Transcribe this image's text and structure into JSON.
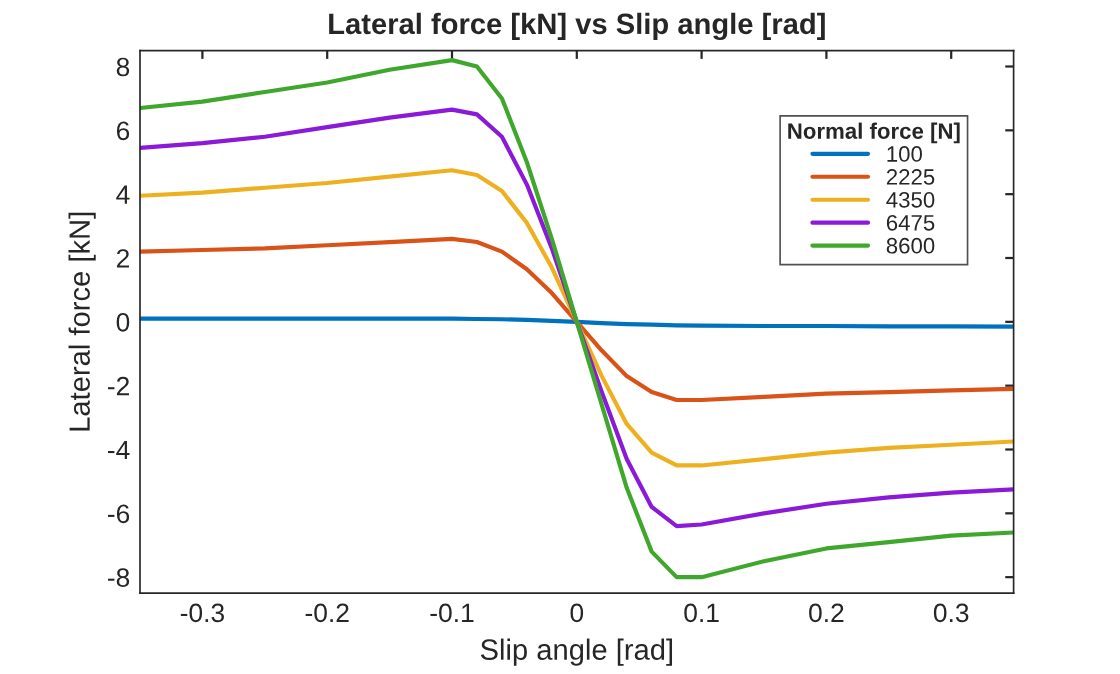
{
  "chart_data": {
    "type": "line",
    "title": "Lateral force [kN] vs Slip angle [rad]",
    "xlabel": "Slip angle [rad]",
    "ylabel": "Lateral force [kN]",
    "legend_title": "Normal force [N]",
    "legend": "top right",
    "grid": false,
    "marker": "none",
    "line_style": "solid",
    "x": [
      -0.35,
      -0.3,
      -0.25,
      -0.2,
      -0.15,
      -0.1,
      -0.08,
      -0.06,
      -0.04,
      -0.02,
      0,
      0.02,
      0.04,
      0.06,
      0.08,
      0.1,
      0.15,
      0.2,
      0.25,
      0.3,
      0.35
    ],
    "xlim": [
      -0.35,
      0.35
    ],
    "xticks": [
      -0.3,
      -0.2,
      -0.1,
      0,
      0.1,
      0.2,
      0.3
    ],
    "ylim": [
      -8.5,
      8.5
    ],
    "yticks": [
      -8,
      -6,
      -4,
      -2,
      0,
      2,
      4,
      6,
      8
    ],
    "series": [
      {
        "name": "100",
        "color": "#0072bd",
        "values": [
          0.1,
          0.1,
          0.1,
          0.1,
          0.1,
          0.1,
          0.09,
          0.08,
          0.06,
          0.03,
          0,
          -0.04,
          -0.07,
          -0.09,
          -0.11,
          -0.12,
          -0.13,
          -0.13,
          -0.14,
          -0.14,
          -0.15
        ]
      },
      {
        "name": "2225",
        "color": "#d95319",
        "values": [
          2.2,
          2.25,
          2.3,
          2.4,
          2.5,
          2.6,
          2.5,
          2.2,
          1.65,
          0.9,
          0,
          -0.9,
          -1.7,
          -2.2,
          -2.45,
          -2.45,
          -2.35,
          -2.25,
          -2.2,
          -2.15,
          -2.1
        ]
      },
      {
        "name": "4350",
        "color": "#edb120",
        "values": [
          3.95,
          4.05,
          4.2,
          4.35,
          4.55,
          4.75,
          4.6,
          4.1,
          3.1,
          1.7,
          0,
          -1.7,
          -3.2,
          -4.1,
          -4.5,
          -4.5,
          -4.3,
          -4.1,
          -3.95,
          -3.85,
          -3.75
        ]
      },
      {
        "name": "6475",
        "color": "#8b1ad8",
        "values": [
          5.45,
          5.6,
          5.8,
          6.1,
          6.4,
          6.65,
          6.5,
          5.8,
          4.3,
          2.3,
          0,
          -2.2,
          -4.3,
          -5.8,
          -6.4,
          -6.35,
          -6.0,
          -5.7,
          -5.5,
          -5.35,
          -5.25
        ]
      },
      {
        "name": "8600",
        "color": "#3fa82c",
        "values": [
          6.7,
          6.9,
          7.2,
          7.5,
          7.9,
          8.2,
          8.0,
          7.0,
          5.0,
          2.6,
          0,
          -2.6,
          -5.2,
          -7.2,
          -8.0,
          -8.0,
          -7.5,
          -7.1,
          -6.9,
          -6.7,
          -6.6
        ]
      }
    ]
  }
}
